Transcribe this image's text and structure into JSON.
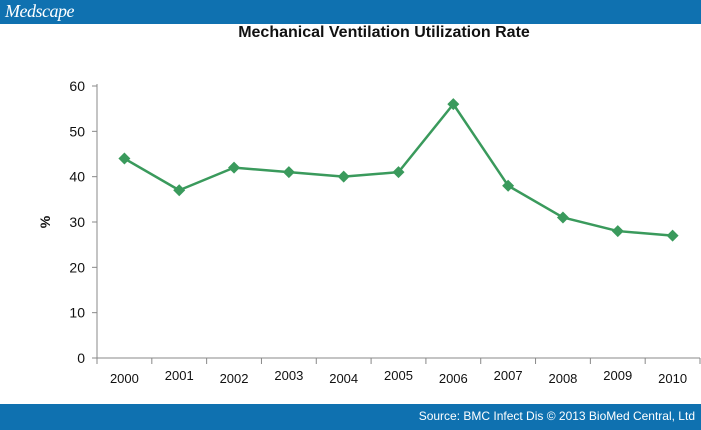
{
  "header": {
    "brand": "Medscape"
  },
  "footer": {
    "source": "Source: BMC Infect Dis © 2013 BioMed Central, Ltd"
  },
  "colors": {
    "bar": "#0f71b0",
    "series": "#3a9a5c"
  },
  "chart_data": {
    "type": "line",
    "title": "Mechanical Ventilation Utilization Rate",
    "xlabel": "",
    "ylabel": "%",
    "ylim": [
      0,
      60
    ],
    "yticks": [
      0,
      10,
      20,
      30,
      40,
      50,
      60
    ],
    "grid": false,
    "categories": [
      "2000",
      "2001",
      "2002",
      "2003",
      "2004",
      "2005",
      "2006",
      "2007",
      "2008",
      "2009",
      "2010"
    ],
    "series": [
      {
        "values": [
          44,
          37,
          42,
          41,
          40,
          41,
          56,
          38,
          31,
          28,
          27
        ],
        "marker": "diamond"
      }
    ]
  }
}
